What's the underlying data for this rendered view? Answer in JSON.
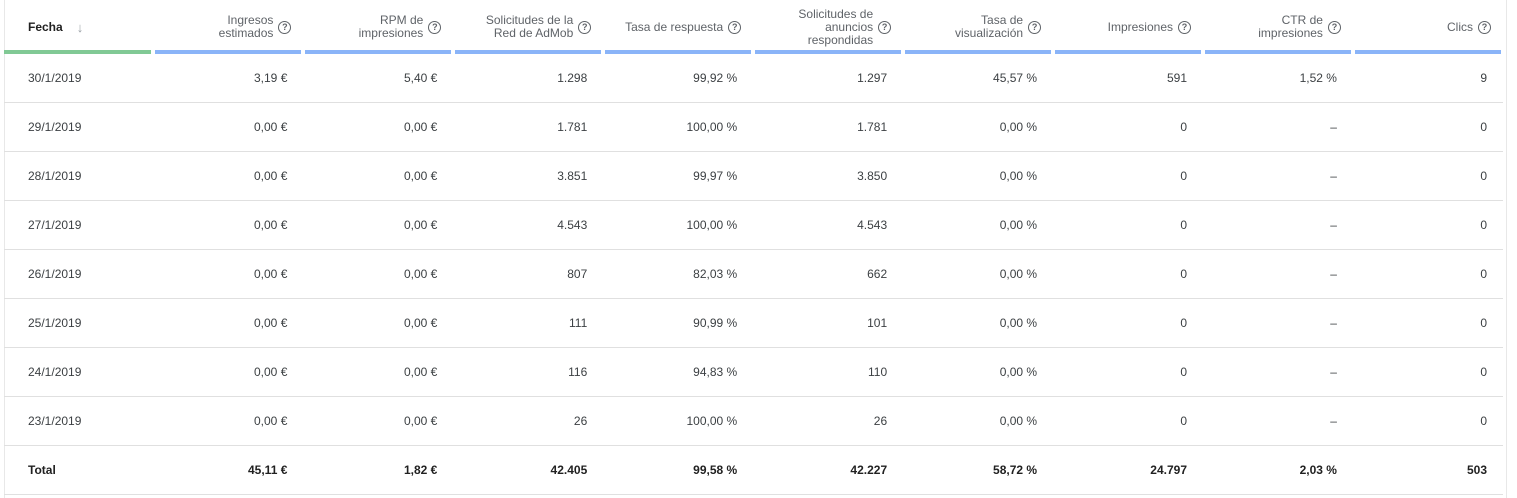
{
  "columns": [
    {
      "label": "Fecha"
    },
    {
      "label": "Ingresos\nestimados"
    },
    {
      "label": "RPM de\nimpresiones"
    },
    {
      "label": "Solicitudes de la\nRed de AdMob"
    },
    {
      "label": "Tasa de respuesta"
    },
    {
      "label": "Solicitudes de\nanuncios\nrespondidas"
    },
    {
      "label": "Tasa de\nvisualización"
    },
    {
      "label": "Impresiones"
    },
    {
      "label": "CTR de\nimpresiones"
    },
    {
      "label": "Clics"
    }
  ],
  "icons": {
    "sort": "arrow-down-icon",
    "help": "help-circle-icon"
  },
  "rows": [
    [
      "30/1/2019",
      "3,19 €",
      "5,40 €",
      "1.298",
      "99,92 %",
      "1.297",
      "45,57 %",
      "591",
      "1,52 %",
      "9"
    ],
    [
      "29/1/2019",
      "0,00 €",
      "0,00 €",
      "1.781",
      "100,00 %",
      "1.781",
      "0,00 %",
      "0",
      "–",
      "0"
    ],
    [
      "28/1/2019",
      "0,00 €",
      "0,00 €",
      "3.851",
      "99,97 %",
      "3.850",
      "0,00 %",
      "0",
      "–",
      "0"
    ],
    [
      "27/1/2019",
      "0,00 €",
      "0,00 €",
      "4.543",
      "100,00 %",
      "4.543",
      "0,00 %",
      "0",
      "–",
      "0"
    ],
    [
      "26/1/2019",
      "0,00 €",
      "0,00 €",
      "807",
      "82,03 %",
      "662",
      "0,00 %",
      "0",
      "–",
      "0"
    ],
    [
      "25/1/2019",
      "0,00 €",
      "0,00 €",
      "111",
      "90,99 %",
      "101",
      "0,00 %",
      "0",
      "–",
      "0"
    ],
    [
      "24/1/2019",
      "0,00 €",
      "0,00 €",
      "116",
      "94,83 %",
      "110",
      "0,00 %",
      "0",
      "–",
      "0"
    ],
    [
      "23/1/2019",
      "0,00 €",
      "0,00 €",
      "26",
      "100,00 %",
      "26",
      "0,00 %",
      "0",
      "–",
      "0"
    ]
  ],
  "total": [
    "Total",
    "45,11 €",
    "1,82 €",
    "42.405",
    "99,58 %",
    "42.227",
    "58,72 %",
    "24.797",
    "2,03 %",
    "503"
  ]
}
